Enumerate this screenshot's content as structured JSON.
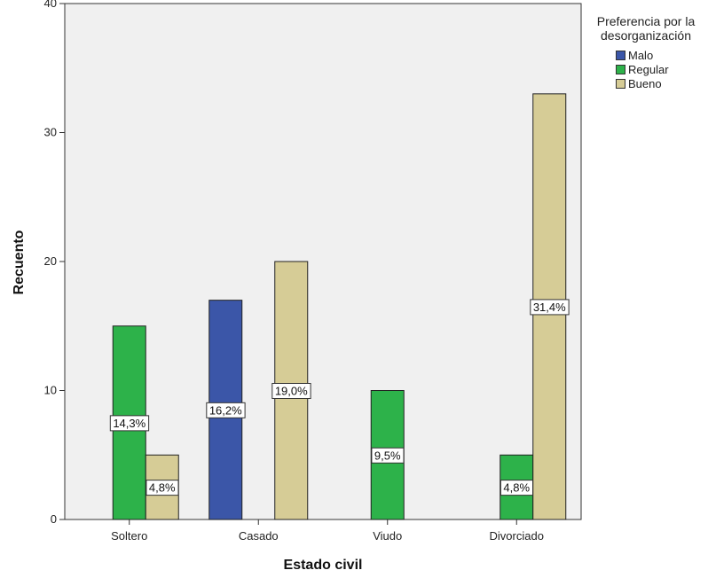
{
  "chart_data": {
    "type": "bar",
    "xlabel": "Estado civil",
    "ylabel": "Recuento",
    "ylim": [
      0,
      40
    ],
    "yticks": [
      0,
      10,
      20,
      30,
      40
    ],
    "categories": [
      "Soltero",
      "Casado",
      "Viudo",
      "Divorciado"
    ],
    "legend_title": "Preferencia por la desorganización",
    "legend_placement": "right",
    "grid": false,
    "series": [
      {
        "name": "Malo",
        "color": "#3b56a8",
        "values": [
          0,
          17,
          0,
          0
        ],
        "labels": [
          "",
          "16,2%",
          "",
          ""
        ]
      },
      {
        "name": "Regular",
        "color": "#2db24a",
        "values": [
          15,
          0,
          10,
          5
        ],
        "labels": [
          "14,3%",
          "",
          "9,5%",
          "4,8%"
        ]
      },
      {
        "name": "Bueno",
        "color": "#d6cc96",
        "values": [
          5,
          20,
          0,
          33
        ],
        "labels": [
          "4,8%",
          "19,0%",
          "",
          "31,4%"
        ]
      }
    ]
  }
}
